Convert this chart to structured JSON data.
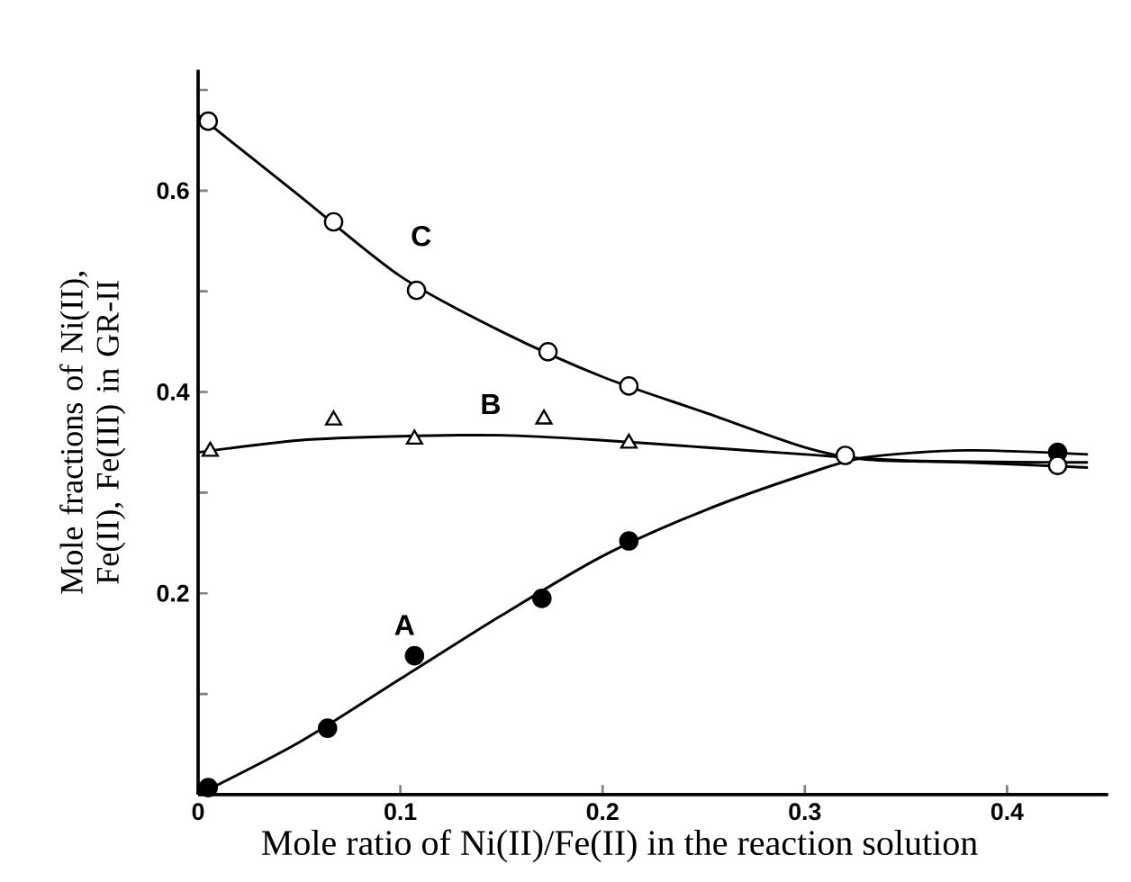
{
  "chart_data": {
    "type": "scatter",
    "xlabel": "Mole ratio of Ni(II)/Fe(II) in the reaction solution",
    "ylabel": "Mole fractions of Ni(II), Fe(II), Fe(III) in GR-II",
    "xlim": [
      0,
      0.45
    ],
    "ylim": [
      0,
      0.72
    ],
    "xticks": [
      0,
      0.1,
      0.2,
      0.3,
      0.4
    ],
    "yticks": [
      {
        "value": 0,
        "label": null
      },
      {
        "value": 0.1,
        "label": null
      },
      0.2,
      {
        "value": 0.3,
        "label": null
      },
      0.4,
      {
        "value": 0.5,
        "label": null
      },
      0.6,
      {
        "value": 0.7,
        "label": null
      }
    ],
    "grid": false,
    "series": [
      {
        "marker": "circle",
        "color": "#000000",
        "x": [
          0.005,
          0.064,
          0.107,
          0.17,
          0.213,
          0.32,
          0.425
        ],
        "values": [
          0.007,
          0.066,
          0.138,
          0.195,
          0.252,
          null,
          0.34
        ]
      },
      {
        "marker": "triangle",
        "color": "#000000",
        "x": [
          0.006,
          0.067,
          0.107,
          0.171,
          0.213
        ],
        "values": [
          0.341,
          0.372,
          0.353,
          0.373,
          0.349
        ]
      },
      {
        "marker": "circle",
        "color": "#000000",
        "x": [
          0.005,
          0.067,
          0.108,
          0.173,
          0.213,
          0.32,
          0.425
        ],
        "values": [
          0.669,
          0.569,
          0.501,
          0.44,
          0.406,
          0.337,
          0.327
        ]
      },
      {
        "type": "line",
        "name": "A",
        "marker": "none",
        "color": "#000000",
        "x": [
          0.0,
          0.05,
          0.1,
          0.15,
          0.2,
          0.25,
          0.3,
          0.33,
          0.38,
          0.44
        ],
        "values": [
          0.0,
          0.052,
          0.115,
          0.178,
          0.237,
          0.282,
          0.318,
          0.335,
          0.342,
          0.338
        ]
      },
      {
        "type": "line",
        "name": "B",
        "marker": "none",
        "color": "#000000",
        "x": [
          0.0,
          0.05,
          0.1,
          0.15,
          0.2,
          0.25,
          0.3,
          0.35,
          0.44
        ],
        "values": [
          0.34,
          0.352,
          0.356,
          0.357,
          0.352,
          0.345,
          0.338,
          0.332,
          0.33
        ]
      },
      {
        "type": "line",
        "name": "C",
        "marker": "none",
        "color": "#000000",
        "x": [
          0.0,
          0.05,
          0.1,
          0.15,
          0.2,
          0.25,
          0.3,
          0.33,
          0.38,
          0.44
        ],
        "values": [
          0.675,
          0.595,
          0.515,
          0.46,
          0.415,
          0.38,
          0.345,
          0.333,
          0.33,
          0.325
        ]
      }
    ]
  }
}
